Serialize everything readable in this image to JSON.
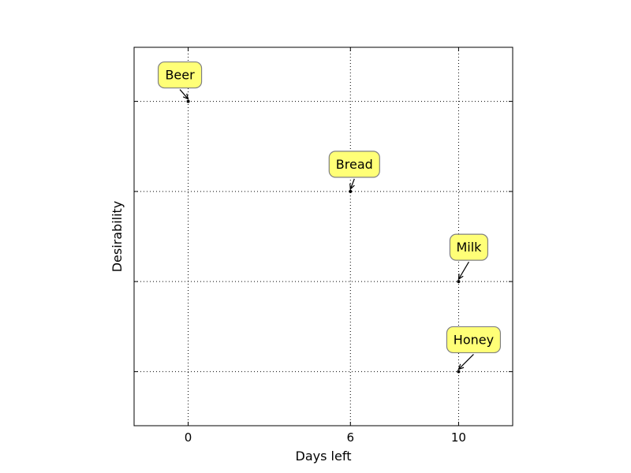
{
  "chart_data": {
    "type": "scatter",
    "title": "",
    "xlabel": "Days left",
    "ylabel": "Desirability",
    "xlim": [
      -2,
      12
    ],
    "ylim": [
      0,
      4.2
    ],
    "grid": true,
    "grid_style": "dotted",
    "x_ticks": [
      0,
      6,
      10
    ],
    "x_tick_labels": [
      "0",
      "6",
      "10"
    ],
    "y_ticks": [
      0.6,
      1.6,
      2.6,
      3.6
    ],
    "y_tick_labels": [
      "",
      "",
      "",
      ""
    ],
    "point_color": "#000000",
    "annotation_box_color": "#ffff77",
    "annotation_border_color": "#808080",
    "points": [
      {
        "label": "Beer",
        "x": 0,
        "y": 3.6
      },
      {
        "label": "Bread",
        "x": 6,
        "y": 2.6
      },
      {
        "label": "Milk",
        "x": 10,
        "y": 1.6
      },
      {
        "label": "Honey",
        "x": 10,
        "y": 0.6
      }
    ]
  }
}
